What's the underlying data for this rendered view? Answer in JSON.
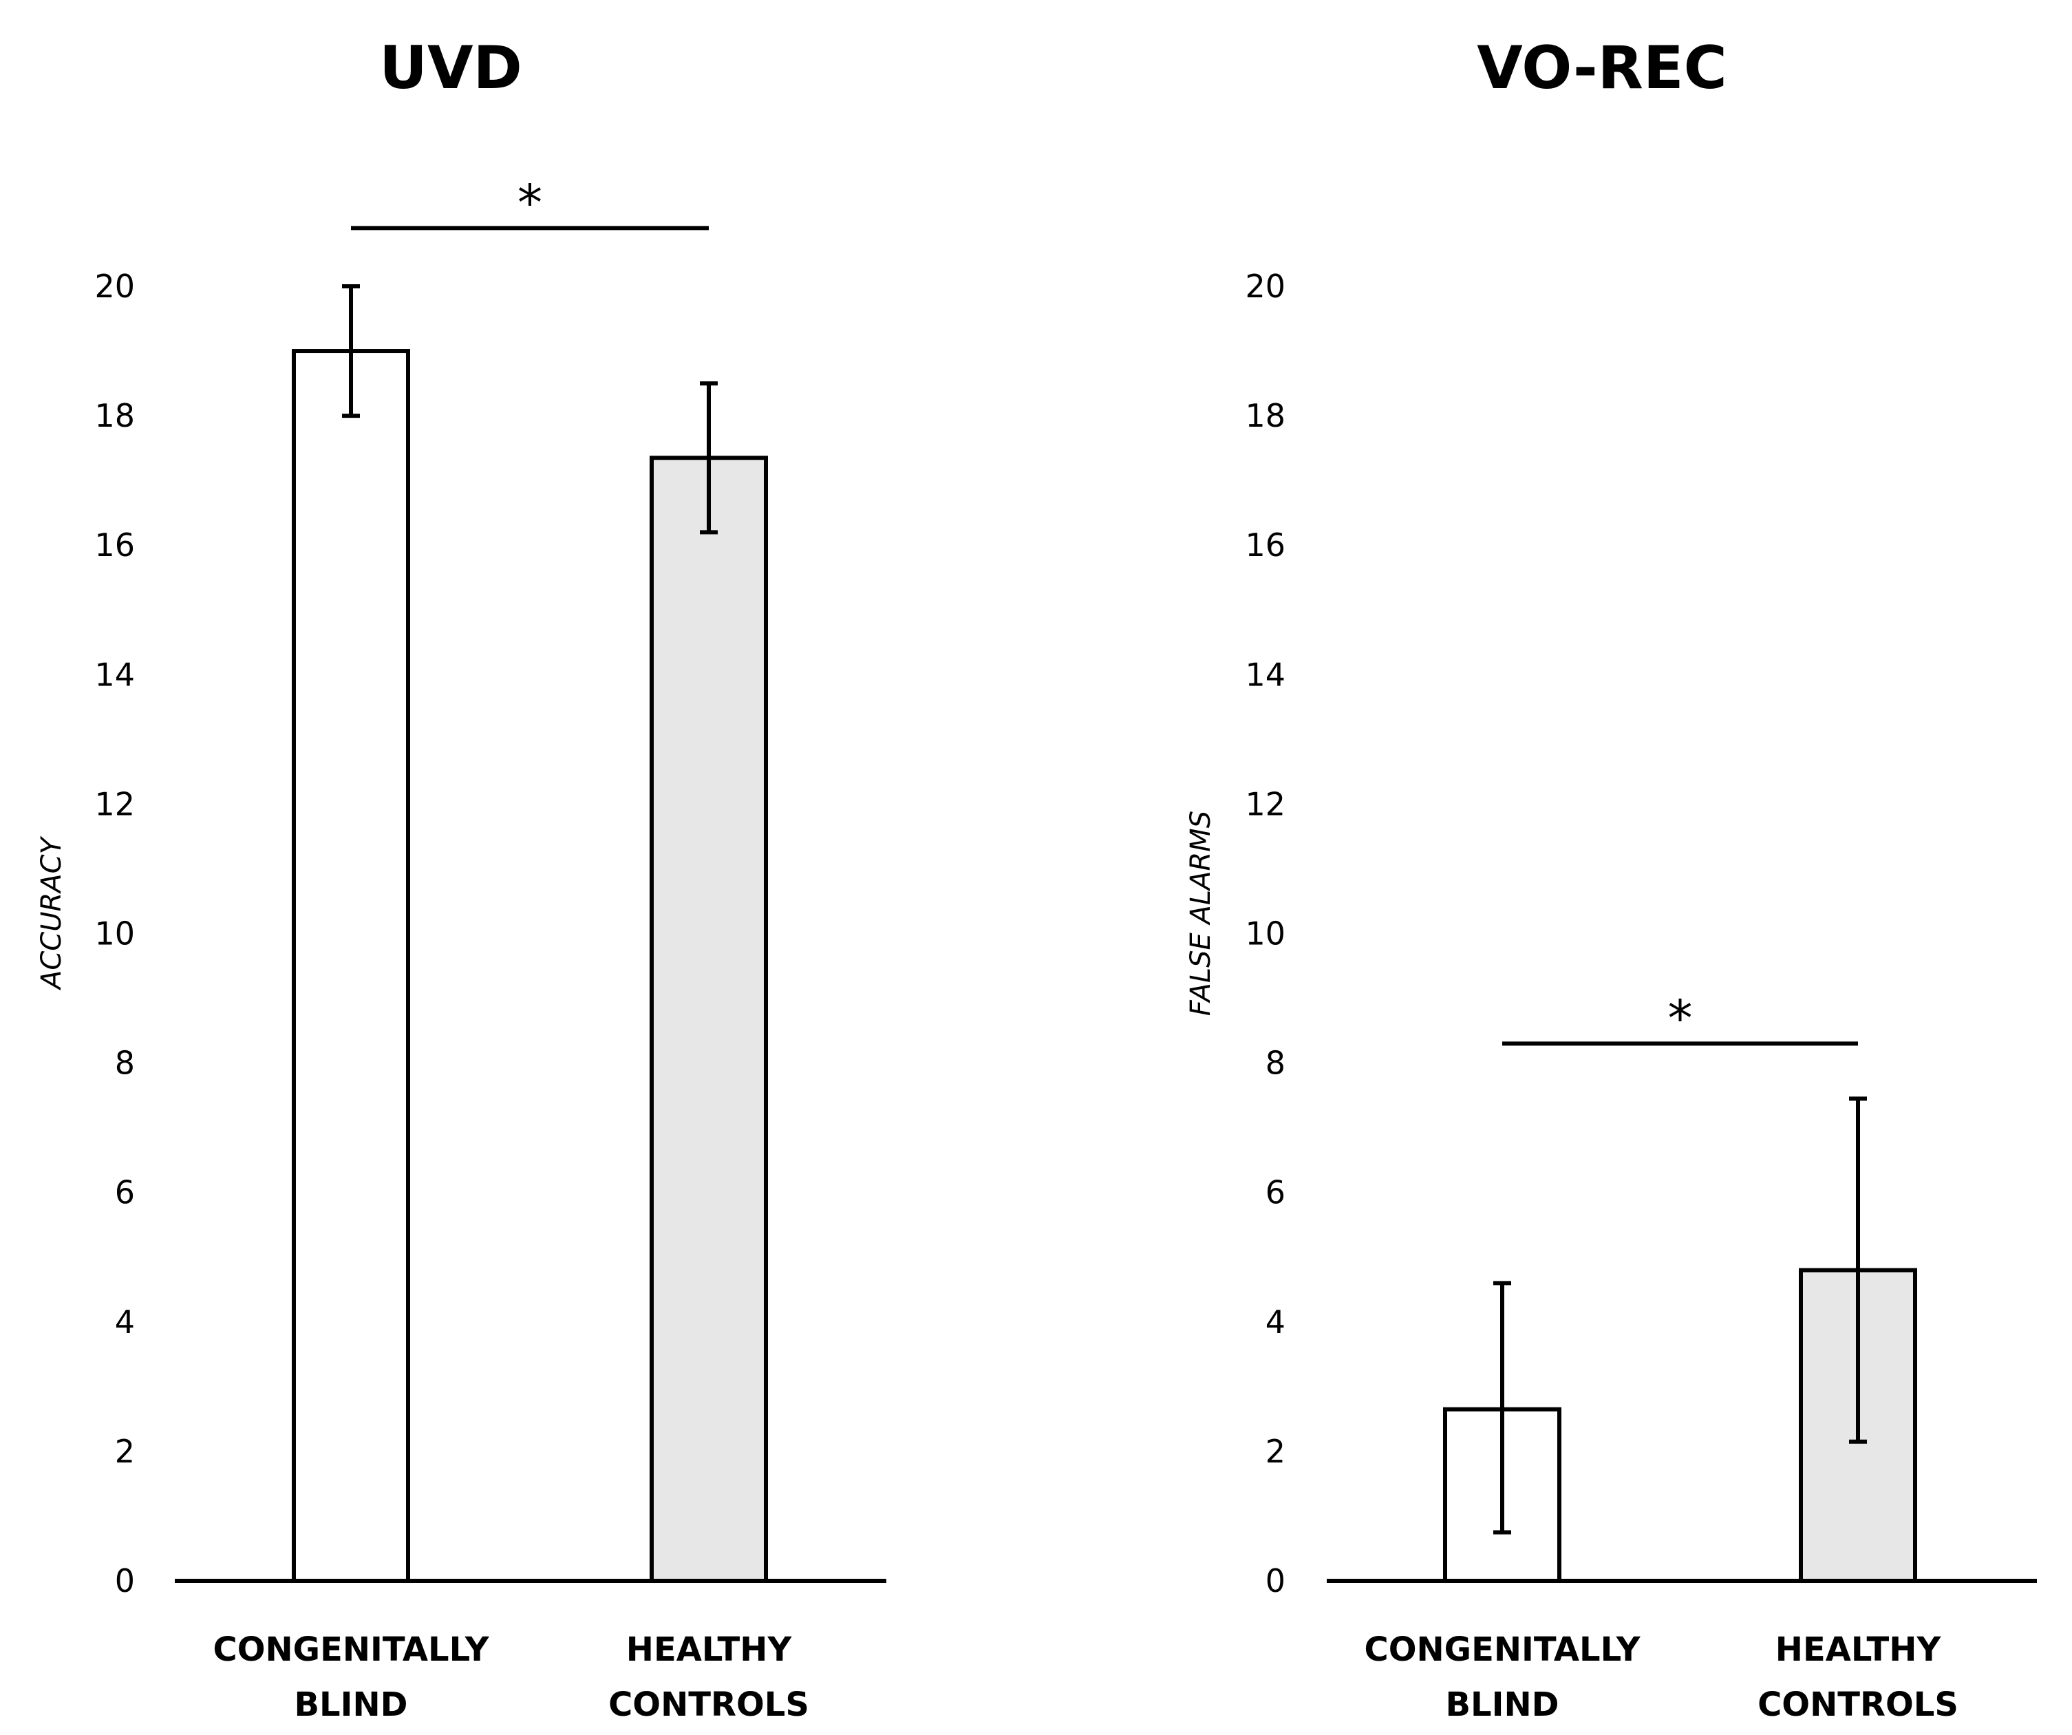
{
  "chart_data": [
    {
      "type": "bar",
      "title": "UVD",
      "xlabel": "",
      "ylabel": "ACCURACY",
      "ylim": [
        0,
        20
      ],
      "yticks": [
        "0",
        "2",
        "4",
        "6",
        "8",
        "10",
        "12",
        "14",
        "16",
        "18",
        "20"
      ],
      "categories": [
        [
          "CONGENITALLY",
          "BLIND"
        ],
        [
          "HEALTHY",
          "CONTROLS"
        ]
      ],
      "values": [
        19,
        17.35
      ],
      "error": [
        [
          18,
          20
        ],
        [
          16.2,
          18.5
        ]
      ],
      "significance": {
        "label": "*",
        "between": [
          0,
          1
        ],
        "level": 20.9
      },
      "colors": [
        "#ffffff",
        "#e7e7e7"
      ]
    },
    {
      "type": "bar",
      "title": "VO-REC",
      "xlabel": "",
      "ylabel": "FALSE ALARMS",
      "ylim": [
        0,
        20
      ],
      "yticks": [
        "0",
        "2",
        "4",
        "6",
        "8",
        "10",
        "12",
        "14",
        "16",
        "18",
        "20"
      ],
      "categories": [
        [
          "CONGENITALLY",
          "BLIND"
        ],
        [
          "HEALTHY",
          "CONTROLS"
        ]
      ],
      "values": [
        2.65,
        4.8
      ],
      "error": [
        [
          0.75,
          4.6
        ],
        [
          2.15,
          7.45
        ]
      ],
      "significance": {
        "label": "*",
        "between": [
          0,
          1
        ],
        "level": 8.3
      },
      "colors": [
        "#ffffff",
        "#e7e7e7"
      ]
    }
  ]
}
